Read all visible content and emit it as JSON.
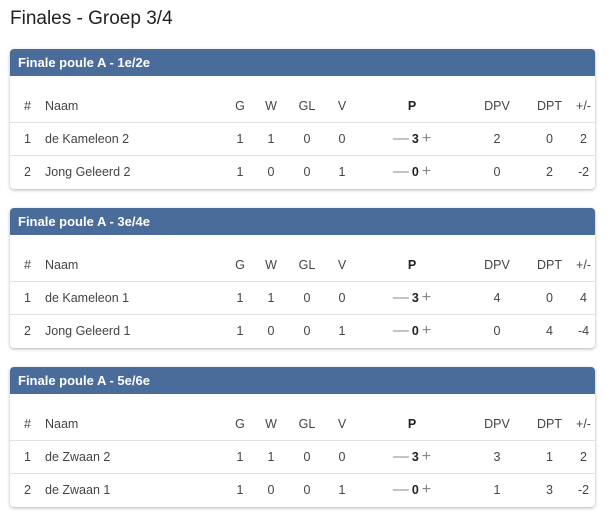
{
  "title": "Finales - Groep 3/4",
  "columns": [
    "#",
    "Naam",
    "G",
    "W",
    "GL",
    "V",
    "P",
    "DPV",
    "DPT",
    "+/-"
  ],
  "icons": {
    "minus": "minus-icon",
    "plus": "plus-icon"
  },
  "header_color": "#4a6c9b",
  "groups": [
    {
      "title": "Finale poule A - 1e/2e",
      "rows": [
        [
          "1",
          "de Kameleon 2",
          "1",
          "1",
          "0",
          "0",
          "3",
          "2",
          "0",
          "2"
        ],
        [
          "2",
          "Jong Geleerd 2",
          "1",
          "0",
          "0",
          "1",
          "0",
          "0",
          "2",
          "-2"
        ]
      ]
    },
    {
      "title": "Finale poule A - 3e/4e",
      "rows": [
        [
          "1",
          "de Kameleon 1",
          "1",
          "1",
          "0",
          "0",
          "3",
          "4",
          "0",
          "4"
        ],
        [
          "2",
          "Jong Geleerd 1",
          "1",
          "0",
          "0",
          "1",
          "0",
          "0",
          "4",
          "-4"
        ]
      ]
    },
    {
      "title": "Finale poule A - 5e/6e",
      "rows": [
        [
          "1",
          "de Zwaan 2",
          "1",
          "1",
          "0",
          "0",
          "3",
          "3",
          "1",
          "2"
        ],
        [
          "2",
          "de Zwaan 1",
          "1",
          "0",
          "0",
          "1",
          "0",
          "1",
          "3",
          "-2"
        ]
      ]
    }
  ]
}
